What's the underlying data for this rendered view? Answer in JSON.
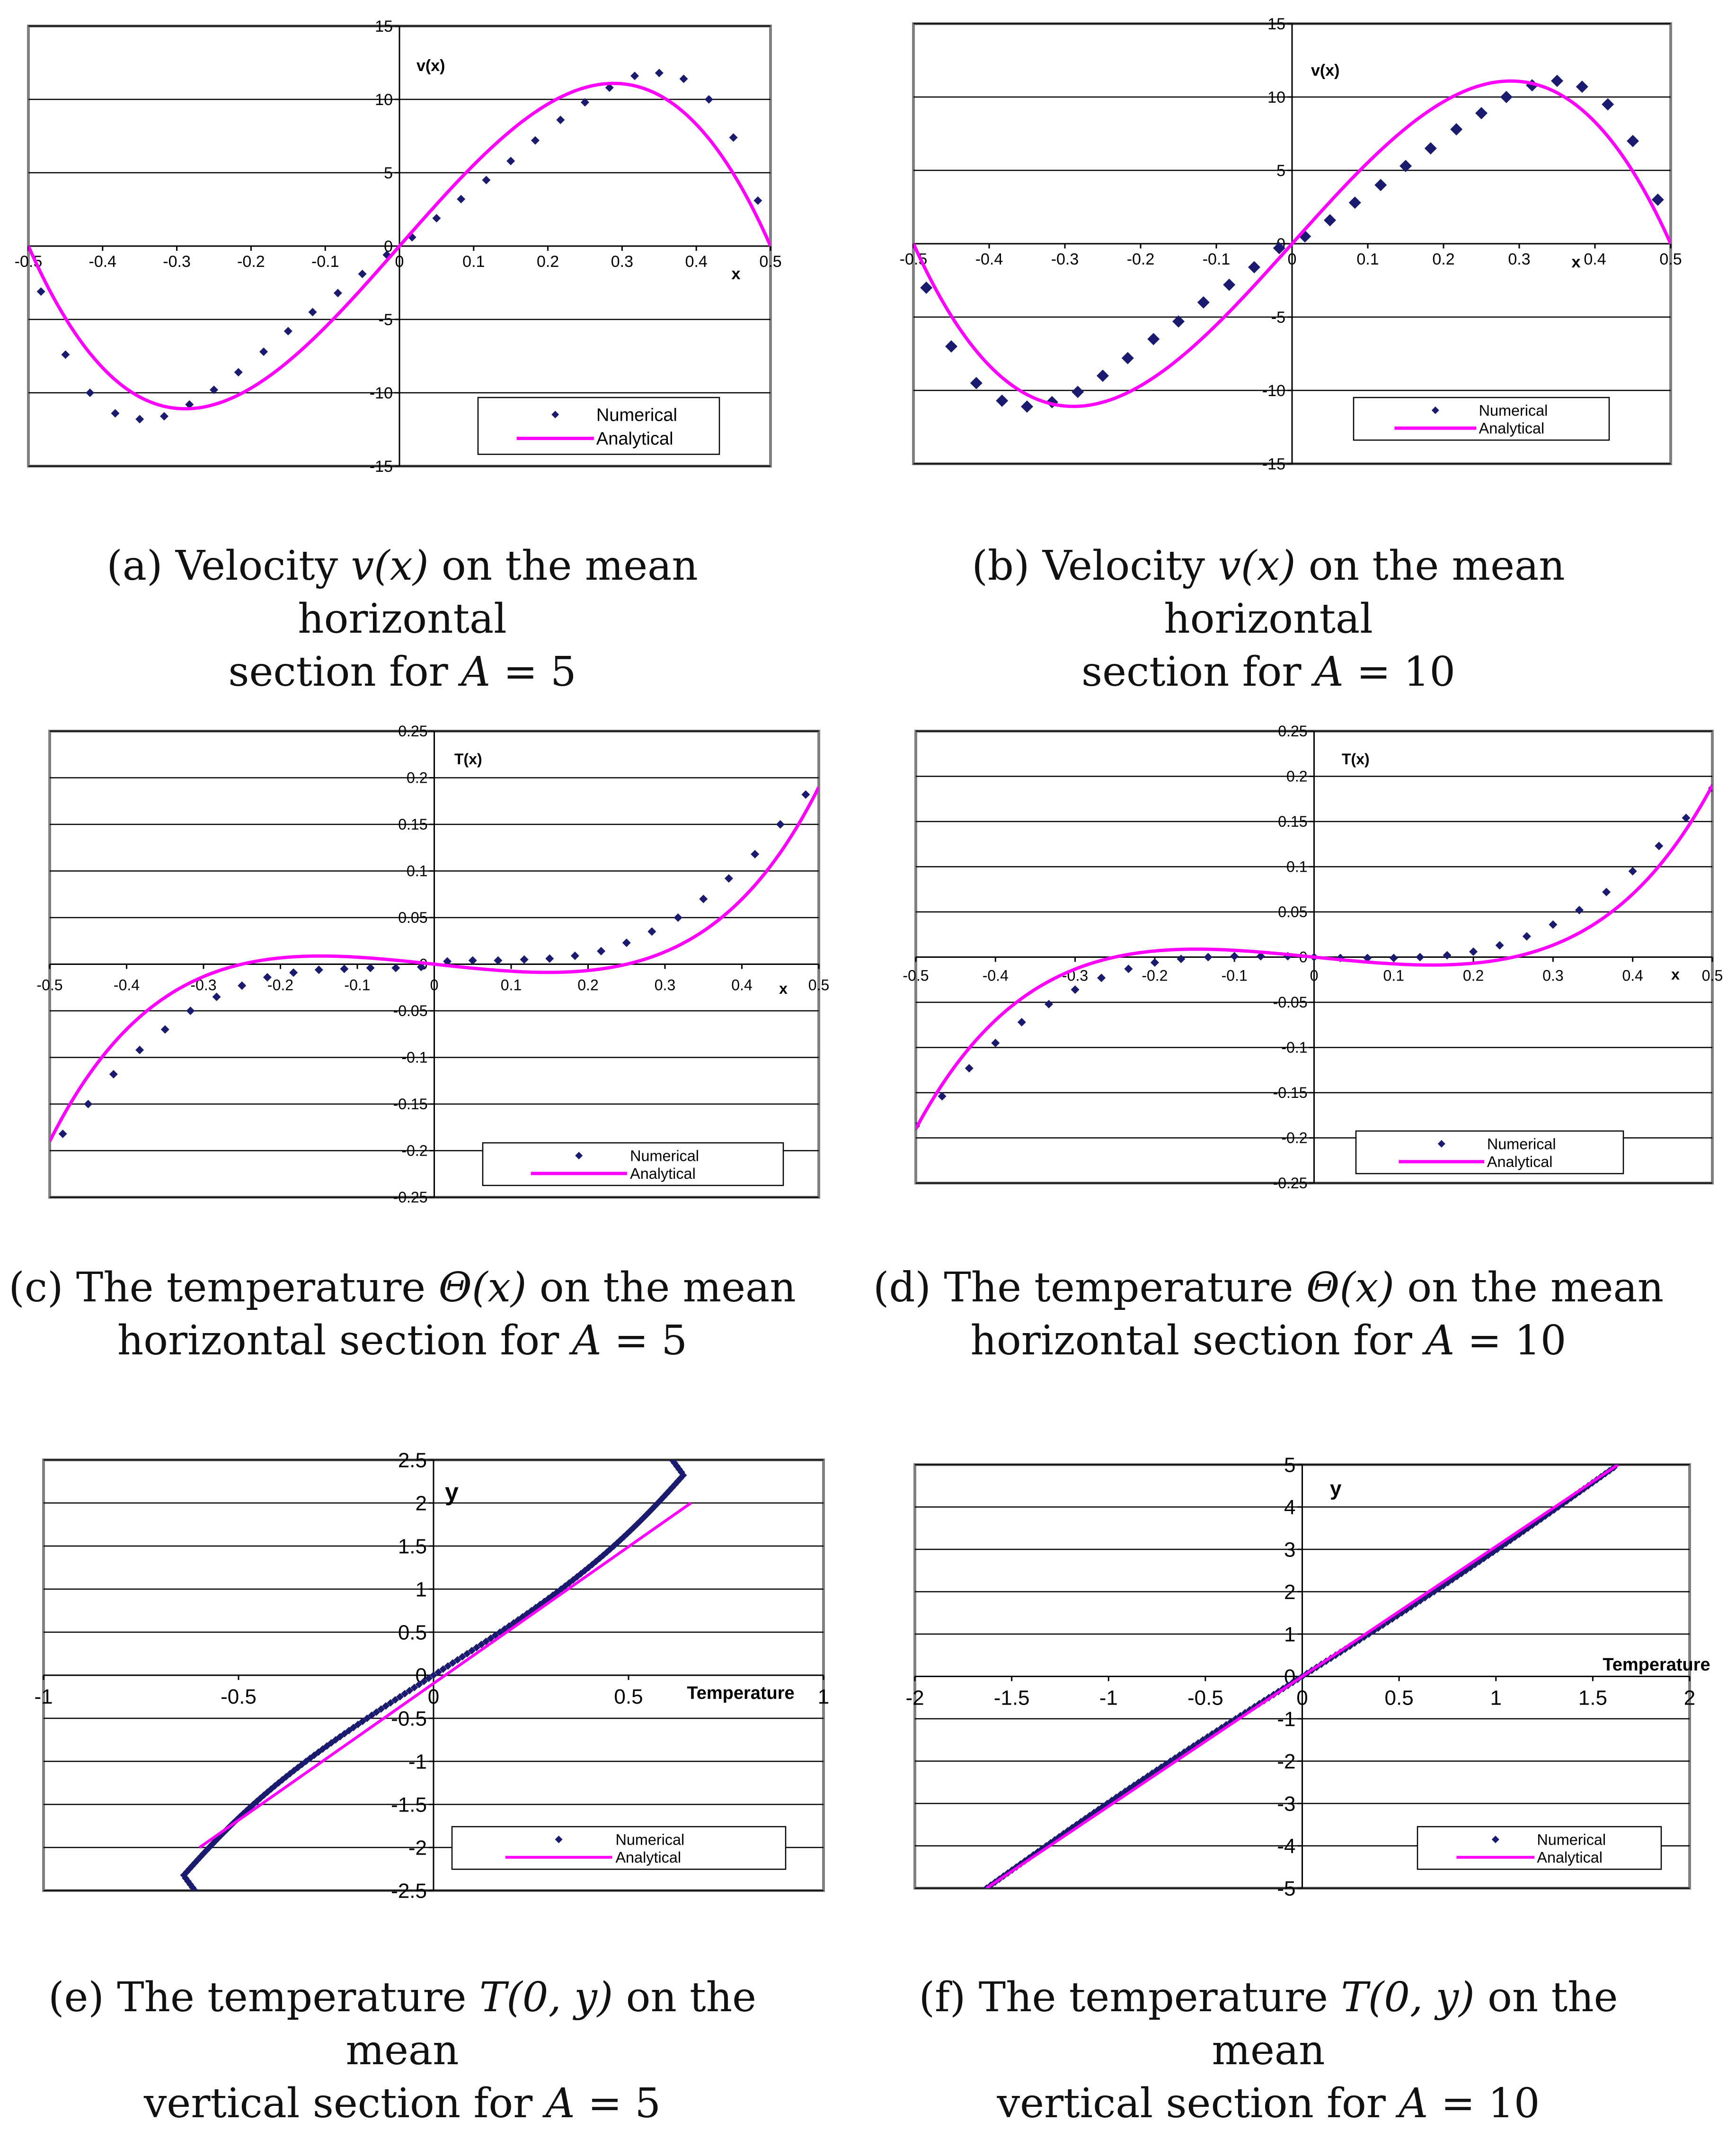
{
  "colors": {
    "numerical": "#1a1a6e",
    "analytical": "#ff00ff",
    "frame": "#808080",
    "grid": "#000000"
  },
  "chart_data": [
    {
      "id": "a",
      "type": "line",
      "xlabel": "x",
      "ylabel": "v(x)",
      "xlim": [
        -0.5,
        0.5
      ],
      "ylim": [
        -15,
        15
      ],
      "xticks": [
        "-0.5",
        "-0.4",
        "-0.3",
        "-0.2",
        "-0.1",
        "0",
        "0.1",
        "0.2",
        "0.3",
        "0.4",
        "0.5"
      ],
      "yticks": [
        "-15",
        "-10",
        "-5",
        "0",
        "5",
        "10",
        "15"
      ],
      "legend": [
        "Numerical",
        "Analytical"
      ],
      "legend_position": "bottom-right",
      "series": [
        {
          "name": "Numerical",
          "kind": "markers",
          "x": [
            -0.483,
            -0.45,
            -0.417,
            -0.383,
            -0.35,
            -0.317,
            -0.283,
            -0.25,
            -0.217,
            -0.183,
            -0.15,
            -0.117,
            -0.083,
            -0.05,
            -0.017,
            0.017,
            0.05,
            0.083,
            0.117,
            0.15,
            0.183,
            0.217,
            0.25,
            0.283,
            0.317,
            0.35,
            0.383,
            0.417,
            0.45,
            0.483
          ],
          "y": [
            -3.1,
            -7.4,
            -10.0,
            -11.4,
            -11.8,
            -11.6,
            -10.8,
            -9.8,
            -8.6,
            -7.2,
            -5.8,
            -4.5,
            -3.2,
            -1.9,
            -0.6,
            0.6,
            1.9,
            3.2,
            4.5,
            5.8,
            7.2,
            8.6,
            9.8,
            10.8,
            11.6,
            11.8,
            11.4,
            10.0,
            7.4,
            3.1
          ]
        },
        {
          "name": "Analytical",
          "kind": "line",
          "fn": "vel",
          "amp": 11.09,
          "x": [],
          "y": []
        }
      ]
    },
    {
      "id": "b",
      "type": "line",
      "xlabel": "x",
      "ylabel": "v(x)",
      "xlim": [
        -0.5,
        0.5
      ],
      "ylim": [
        -15,
        15
      ],
      "xticks": [
        "-0.5",
        "-0.4",
        "-0.3",
        "-0.2",
        "-0.1",
        "0",
        "0.1",
        "0.2",
        "0.3",
        "0.4",
        "0.5"
      ],
      "yticks": [
        "-15",
        "-10",
        "-5",
        "0",
        "5",
        "10",
        "15"
      ],
      "legend": [
        "Numerical",
        "Analytical"
      ],
      "legend_position": "bottom-right",
      "series": [
        {
          "name": "Numerical",
          "kind": "markers",
          "x": [
            -0.483,
            -0.45,
            -0.417,
            -0.383,
            -0.35,
            -0.317,
            -0.283,
            -0.25,
            -0.217,
            -0.183,
            -0.15,
            -0.117,
            -0.083,
            -0.05,
            -0.017,
            0.017,
            0.05,
            0.083,
            0.117,
            0.15,
            0.183,
            0.217,
            0.25,
            0.283,
            0.317,
            0.35,
            0.383,
            0.417,
            0.45,
            0.483
          ],
          "y": [
            -3.0,
            -7.0,
            -9.5,
            -10.7,
            -11.1,
            -10.8,
            -10.1,
            -9.0,
            -7.8,
            -6.5,
            -5.3,
            -4.0,
            -2.8,
            -1.6,
            -0.3,
            0.5,
            1.6,
            2.8,
            4.0,
            5.3,
            6.5,
            7.8,
            8.9,
            10.0,
            10.8,
            11.1,
            10.7,
            9.5,
            7.0,
            3.0
          ]
        },
        {
          "name": "Analytical",
          "kind": "line",
          "fn": "vel",
          "amp": 11.09,
          "x": [],
          "y": []
        }
      ]
    },
    {
      "id": "c",
      "type": "line",
      "xlabel": "x",
      "ylabel": "T(x)",
      "xlim": [
        -0.5,
        0.5
      ],
      "ylim": [
        -0.25,
        0.25
      ],
      "xticks": [
        "-0.5",
        "-0.4",
        "-0.3",
        "-0.2",
        "-0.1",
        "0",
        "0.1",
        "0.2",
        "0.3",
        "0.4",
        "0.5"
      ],
      "yticks": [
        "-0.25",
        "-0.2",
        "-0.15",
        "-0.1",
        "-0.05",
        "0",
        "0.05",
        "0.1",
        "0.15",
        "0.2",
        "0.25"
      ],
      "legend": [
        "Numerical",
        "Analytical"
      ],
      "legend_position": "bottom-right",
      "series": [
        {
          "name": "Numerical",
          "kind": "markers",
          "x": [
            -0.483,
            -0.45,
            -0.417,
            -0.383,
            -0.35,
            -0.317,
            -0.283,
            -0.25,
            -0.217,
            -0.183,
            -0.15,
            -0.117,
            -0.083,
            -0.05,
            -0.017,
            0.017,
            0.05,
            0.083,
            0.117,
            0.15,
            0.183,
            0.217,
            0.25,
            0.283,
            0.317,
            0.35,
            0.383,
            0.417,
            0.45,
            0.483
          ],
          "y": [
            -0.182,
            -0.15,
            -0.118,
            -0.092,
            -0.07,
            -0.05,
            -0.035,
            -0.023,
            -0.014,
            -0.009,
            -0.006,
            -0.005,
            -0.004,
            -0.004,
            -0.003,
            0.003,
            0.004,
            0.004,
            0.005,
            0.006,
            0.009,
            0.014,
            0.023,
            0.035,
            0.05,
            0.07,
            0.092,
            0.118,
            0.15,
            0.182
          ]
        },
        {
          "name": "Analytical",
          "kind": "line",
          "fn": "temp",
          "x": [],
          "y": []
        }
      ]
    },
    {
      "id": "d",
      "type": "line",
      "xlabel": "x",
      "ylabel": "T(x)",
      "xlim": [
        -0.5,
        0.5
      ],
      "ylim": [
        -0.25,
        0.25
      ],
      "xticks": [
        "-0.5",
        "-0.4",
        "-0.3",
        "-0.2",
        "-0.1",
        "0",
        "0.1",
        "0.2",
        "0.3",
        "0.4",
        "0.5"
      ],
      "yticks": [
        "-0.25",
        "-0.2",
        "-0.15",
        "-0.1",
        "-0.05",
        "0",
        "0.05",
        "0.1",
        "0.15",
        "0.2",
        "0.25"
      ],
      "legend": [
        "Numerical",
        "Analytical"
      ],
      "legend_position": "bottom-right",
      "series": [
        {
          "name": "Numerical",
          "kind": "markers",
          "x": [
            -0.5,
            -0.467,
            -0.433,
            -0.4,
            -0.367,
            -0.333,
            -0.3,
            -0.267,
            -0.233,
            -0.2,
            -0.167,
            -0.133,
            -0.1,
            -0.067,
            -0.033,
            0,
            0.033,
            0.067,
            0.1,
            0.133,
            0.167,
            0.2,
            0.233,
            0.267,
            0.3,
            0.333,
            0.367,
            0.4,
            0.433,
            0.467,
            0.5
          ],
          "y": [
            -0.187,
            -0.154,
            -0.123,
            -0.095,
            -0.072,
            -0.052,
            -0.036,
            -0.023,
            -0.013,
            -0.006,
            -0.002,
            0.0,
            0.001,
            0.001,
            0.001,
            0.0,
            -0.001,
            -0.001,
            -0.001,
            0.0,
            0.002,
            0.006,
            0.013,
            0.023,
            0.036,
            0.052,
            0.072,
            0.095,
            0.123,
            0.154,
            0.187
          ]
        },
        {
          "name": "Analytical",
          "kind": "line",
          "fn": "temp",
          "x": [],
          "y": []
        }
      ]
    },
    {
      "id": "e",
      "type": "line",
      "xlabel": "Temperature",
      "ylabel": "y",
      "xlim": [
        -1,
        1
      ],
      "ylim": [
        -2.5,
        2.5
      ],
      "xticks": [
        "-1",
        "-0.5",
        "0",
        "0.5",
        "1"
      ],
      "yticks": [
        "-2.5",
        "-2",
        "-1.5",
        "-1",
        "-0.5",
        "0",
        "0.5",
        "1",
        "1.5",
        "2",
        "2.5"
      ],
      "legend": [
        "Numerical",
        "Analytical"
      ],
      "legend_position": "bottom-right",
      "series": [
        {
          "name": "Numerical",
          "kind": "dense",
          "fn": "vertE",
          "x": [],
          "y": []
        },
        {
          "name": "Analytical",
          "kind": "line",
          "x": [
            -0.6,
            0.66
          ],
          "y": [
            -2.0,
            2.0
          ]
        }
      ]
    },
    {
      "id": "f",
      "type": "line",
      "xlabel": "Temperature",
      "ylabel": "y",
      "xlim": [
        -2,
        2
      ],
      "ylim": [
        -5,
        5
      ],
      "xticks": [
        "-2",
        "-1.5",
        "-1",
        "-0.5",
        "0",
        "0.5",
        "1",
        "1.5",
        "2"
      ],
      "yticks": [
        "-5",
        "-4",
        "-3",
        "-2",
        "-1",
        "0",
        "1",
        "2",
        "3",
        "4",
        "5"
      ],
      "legend": [
        "Numerical",
        "Analytical"
      ],
      "legend_position": "bottom-right",
      "series": [
        {
          "name": "Numerical",
          "kind": "dense",
          "fn": "vertF",
          "x": [],
          "y": []
        },
        {
          "name": "Analytical",
          "kind": "line",
          "x": [
            -1.63,
            1.63
          ],
          "y": [
            -5.0,
            5.0
          ]
        }
      ]
    }
  ],
  "captions": {
    "a": {
      "pre": "(a) Velocity ",
      "math": "v(x)",
      "mid": " on the mean horizontal",
      "line2a": "section for ",
      "line2math": "A",
      "line2b": " = 5"
    },
    "b": {
      "pre": "(b) Velocity ",
      "math": "v(x)",
      "mid": " on the mean horizontal",
      "line2a": "section for ",
      "line2math": "A",
      "line2b": " = 10"
    },
    "c": {
      "pre": "(c) The temperature ",
      "math": "Θ(x)",
      "mid": " on the mean",
      "line2a": "horizontal section for ",
      "line2math": "A",
      "line2b": " = 5"
    },
    "d": {
      "pre": "(d) The temperature ",
      "math": "Θ(x)",
      "mid": " on the mean",
      "line2a": "horizontal section for ",
      "line2math": "A",
      "line2b": " = 10"
    },
    "e": {
      "pre": "(e) The temperature ",
      "math": "T(0, y)",
      "mid": " on the mean",
      "line2a": "vertical section for ",
      "line2math": "A",
      "line2b": " = 5"
    },
    "f": {
      "pre": "(f) The temperature ",
      "math": "T(0, y)",
      "mid": " on the mean",
      "line2a": "vertical section for ",
      "line2math": "A",
      "line2b": " = 10"
    }
  }
}
